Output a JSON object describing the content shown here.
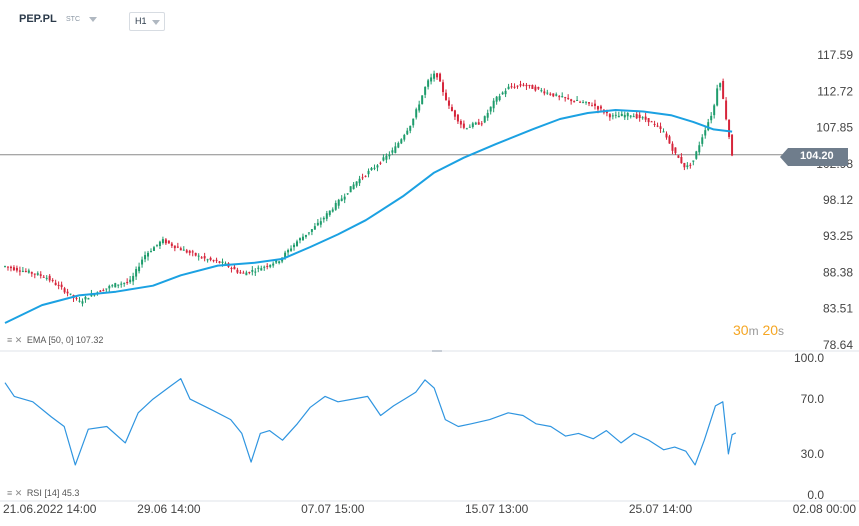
{
  "header": {
    "symbol": "PEP.PL",
    "market": "STC",
    "timeframe": "H1"
  },
  "indicators": {
    "ema": {
      "icons": "≡ ✕",
      "label": "EMA [50, 0] 107.32"
    },
    "rsi": {
      "icons": "≡ ✕",
      "label": "RSI [14] 45.3"
    }
  },
  "timer": {
    "minutes": "30",
    "m": "m",
    "seconds": "20",
    "s": "s"
  },
  "current_price": "104.20",
  "colors": {
    "up": "#1e9c6c",
    "down": "#d6253b",
    "ema": "#1ba1e2",
    "rsi": "#2f95e0",
    "axis_text": "#444444",
    "separator": "#dfe3e8",
    "price_line": "#8a8a8a",
    "timer": "#f5a623"
  },
  "chart_data": [
    {
      "type": "candlestick",
      "name": "PEP.PL H1",
      "ylim": [
        78.64,
        117.59
      ],
      "y_ticks": [
        117.59,
        112.72,
        107.85,
        102.98,
        98.12,
        93.25,
        88.38,
        83.51,
        78.64
      ],
      "y_tick_labels": [
        "117.59",
        "112.72",
        "107.85",
        "102.98",
        "98.12",
        "93.25",
        "88.38",
        "83.51",
        "78.64"
      ],
      "x_tick_labels": [
        "21.06.2022 14:00",
        "29.06 14:00",
        "07.07 15:00",
        "15.07 13:00",
        "25.07 14:00",
        "02.08 00:00"
      ],
      "candle_count": 245,
      "x_tick_candle_index": [
        0,
        55,
        110,
        165,
        220,
        275
      ],
      "current_price": 104.2,
      "close_path_keypoints": [
        [
          0,
          89.2
        ],
        [
          10,
          88.6
        ],
        [
          22,
          87.8
        ],
        [
          33,
          85.8
        ],
        [
          40,
          84.4
        ],
        [
          48,
          85.6
        ],
        [
          60,
          86.8
        ],
        [
          68,
          87.2
        ],
        [
          75,
          90.6
        ],
        [
          85,
          92.7
        ],
        [
          95,
          91.5
        ],
        [
          108,
          90.2
        ],
        [
          118,
          89.6
        ],
        [
          128,
          88.2
        ],
        [
          136,
          88.8
        ],
        [
          148,
          90.0
        ],
        [
          158,
          92.6
        ],
        [
          168,
          94.6
        ],
        [
          180,
          97.8
        ],
        [
          190,
          100.6
        ],
        [
          200,
          102.6
        ],
        [
          210,
          104.8
        ],
        [
          220,
          108.6
        ],
        [
          228,
          113.8
        ],
        [
          233,
          115.2
        ],
        [
          240,
          110.6
        ],
        [
          248,
          107.8
        ],
        [
          258,
          108.6
        ],
        [
          265,
          111.6
        ],
        [
          272,
          113.2
        ],
        [
          280,
          113.6
        ],
        [
          290,
          112.8
        ],
        [
          300,
          111.9
        ],
        [
          310,
          111.3
        ],
        [
          318,
          110.9
        ],
        [
          328,
          109.3
        ],
        [
          338,
          109.6
        ],
        [
          348,
          108.8
        ],
        [
          356,
          107.2
        ],
        [
          362,
          104.4
        ],
        [
          368,
          102.4
        ],
        [
          372,
          103.4
        ],
        [
          378,
          107.4
        ],
        [
          383,
          110.3
        ],
        [
          386,
          114.9
        ],
        [
          393,
          104.2
        ]
      ],
      "ema": {
        "name": "EMA [50, 0]",
        "last_value": 107.32,
        "keypoints": [
          [
            0,
            81.6
          ],
          [
            20,
            84.0
          ],
          [
            40,
            85.3
          ],
          [
            60,
            85.8
          ],
          [
            80,
            86.6
          ],
          [
            95,
            88.0
          ],
          [
            115,
            89.3
          ],
          [
            135,
            89.7
          ],
          [
            150,
            90.2
          ],
          [
            165,
            91.8
          ],
          [
            180,
            93.5
          ],
          [
            195,
            95.4
          ],
          [
            215,
            98.6
          ],
          [
            232,
            101.8
          ],
          [
            248,
            103.8
          ],
          [
            265,
            105.6
          ],
          [
            285,
            107.6
          ],
          [
            300,
            109.0
          ],
          [
            315,
            109.8
          ],
          [
            330,
            110.2
          ],
          [
            345,
            110.0
          ],
          [
            360,
            109.5
          ],
          [
            372,
            108.6
          ],
          [
            383,
            107.6
          ],
          [
            393,
            107.3
          ]
        ]
      }
    },
    {
      "type": "line",
      "name": "RSI [14]",
      "ylim": [
        0.0,
        100.0
      ],
      "y_ticks": [
        100.0,
        70.0,
        30.0,
        0.0
      ],
      "y_tick_labels": [
        "100.0",
        "70.0",
        "30.0",
        "0.0"
      ],
      "last_value": 45.3,
      "keypoints": [
        [
          0,
          82
        ],
        [
          5,
          72
        ],
        [
          15,
          68
        ],
        [
          25,
          57
        ],
        [
          32,
          50
        ],
        [
          38,
          22
        ],
        [
          45,
          48
        ],
        [
          55,
          50
        ],
        [
          65,
          38
        ],
        [
          72,
          60
        ],
        [
          80,
          70
        ],
        [
          90,
          80
        ],
        [
          95,
          85
        ],
        [
          100,
          70
        ],
        [
          112,
          62
        ],
        [
          122,
          55
        ],
        [
          128,
          45
        ],
        [
          133,
          24
        ],
        [
          138,
          45
        ],
        [
          143,
          47
        ],
        [
          150,
          40
        ],
        [
          158,
          52
        ],
        [
          165,
          64
        ],
        [
          173,
          72
        ],
        [
          180,
          68
        ],
        [
          188,
          70
        ],
        [
          196,
          72
        ],
        [
          203,
          58
        ],
        [
          210,
          65
        ],
        [
          216,
          70
        ],
        [
          222,
          75
        ],
        [
          227,
          84
        ],
        [
          232,
          78
        ],
        [
          238,
          55
        ],
        [
          245,
          50
        ],
        [
          252,
          52
        ],
        [
          262,
          55
        ],
        [
          272,
          60
        ],
        [
          280,
          58
        ],
        [
          287,
          52
        ],
        [
          295,
          50
        ],
        [
          303,
          43
        ],
        [
          310,
          45
        ],
        [
          318,
          41
        ],
        [
          325,
          47
        ],
        [
          333,
          38
        ],
        [
          340,
          45
        ],
        [
          348,
          40
        ],
        [
          356,
          33
        ],
        [
          362,
          35
        ],
        [
          368,
          32
        ],
        [
          373,
          22
        ],
        [
          378,
          40
        ],
        [
          384,
          65
        ],
        [
          388,
          68
        ],
        [
          391,
          30
        ],
        [
          393,
          44
        ],
        [
          395,
          45.3
        ]
      ]
    }
  ]
}
